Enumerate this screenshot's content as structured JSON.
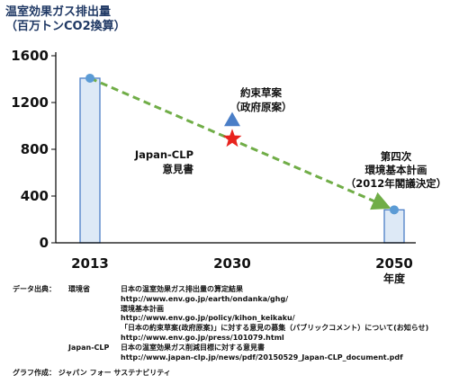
{
  "chart_data": {
    "type": "bar",
    "title_lines": [
      "温室効果ガス排出量",
      "（百万トンCO2換算）"
    ],
    "categories": [
      "2013",
      "2030",
      "2050"
    ],
    "x_unit": "年度",
    "values": [
      1408,
      940,
      282
    ],
    "ylim": [
      0,
      1600
    ],
    "yticks": [
      0,
      400,
      800,
      1200,
      1600
    ],
    "grid": false,
    "trend_line": {
      "from": [
        2013,
        1408
      ],
      "to": [
        2050,
        282
      ],
      "style": "dashed",
      "color": "#70ad47"
    },
    "markers": [
      {
        "kind": "triangle",
        "x": 2030,
        "y": 1050,
        "color": "#4a7ec7"
      },
      {
        "kind": "star",
        "x": 2030,
        "y": 890,
        "color": "#e8231e"
      }
    ],
    "annotations": [
      {
        "lines": [
          "約束草案",
          "（政府原案）"
        ]
      },
      {
        "lines": [
          "Japan-CLP",
          "意見書"
        ]
      },
      {
        "lines": [
          "第四次",
          "環境基本計画",
          "（2012年閣議決定）"
        ]
      }
    ],
    "colors": {
      "bar_fill": "#dde9f6",
      "bar_edge": "#4a7ec7",
      "endpoint": "#5b9bd5"
    }
  },
  "footer": {
    "label": "データ出典：",
    "sources": [
      {
        "name": "環境省",
        "entries": [
          "日本の温室効果ガス排出量の算定結果",
          "http://www.env.go.jp/earth/ondanka/ghg/",
          "環境基本計画",
          "http://www.env.go.jp/policy/kihon_keikaku/",
          "「日本の約束草案(政府原案)」に対する意見の募集（パブリックコメント）について(お知らせ)",
          "http://www.env.go.jp/press/101079.html"
        ]
      },
      {
        "name": "Japan-CLP",
        "entries": [
          "日本の温室効果ガス削減目標に対する意見書",
          "http://www.japan-clp.jp/news/pdf/20150529_Japan-CLP_document.pdf"
        ]
      }
    ],
    "credit": "グラフ作成： ジャパン フォー サステナビリティ"
  }
}
